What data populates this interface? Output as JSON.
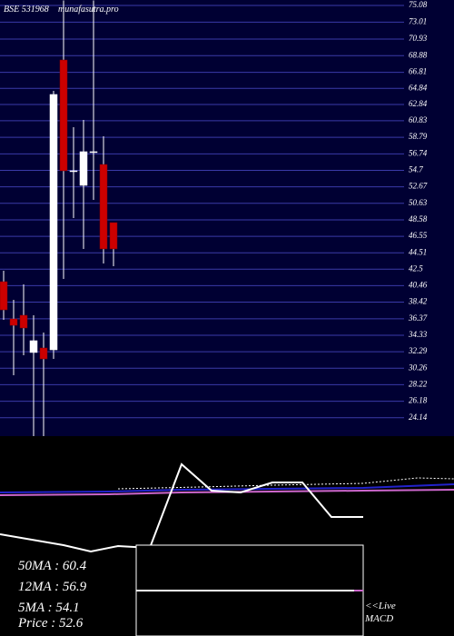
{
  "chart_data": {
    "type": "candlestick",
    "title": "BSE 531968",
    "source": "munafasutra.pro",
    "categories": [
      null,
      null,
      null,
      null,
      null,
      null,
      null,
      null,
      null,
      null,
      null,
      null
    ],
    "open": [
      40.95,
      36.35,
      36.8,
      32.2,
      32.76,
      32.53,
      68.34,
      54.65,
      52.85,
      57.01,
      55.43,
      48.25
    ],
    "high": [
      42.3,
      38.71,
      40.62,
      36.8,
      34.67,
      64.53,
      75.7,
      60.04,
      60.94,
      75.7,
      58.91,
      48.25
    ],
    "low": [
      36.24,
      29.39,
      31.86,
      21.87,
      21.87,
      31.41,
      41.29,
      48.81,
      45.0,
      51.06,
      43.2,
      42.86
    ],
    "close": [
      37.47,
      35.56,
      35.23,
      33.66,
      31.41,
      64.08,
      54.65,
      54.65,
      57.01,
      57.01,
      45.0,
      45.0
    ],
    "up_color": "#ffffff",
    "down_color": "#cc0000",
    "ylim": [
      21.87,
      75.75
    ],
    "yticks": [
      75.08,
      73.01,
      70.93,
      68.88,
      66.81,
      64.84,
      62.84,
      60.83,
      58.79,
      56.74,
      54.7,
      52.67,
      50.63,
      48.58,
      46.55,
      44.51,
      42.5,
      40.46,
      38.42,
      36.37,
      34.33,
      32.29,
      30.26,
      28.22,
      26.18,
      24.14
    ],
    "grid": true
  },
  "indicators": [
    "50MA : 60.4",
    "12MA : 56.9",
    "5MA : 54.1",
    "Price  : 52.6"
  ],
  "live_link": "<<Live",
  "macd_label": "MACD"
}
